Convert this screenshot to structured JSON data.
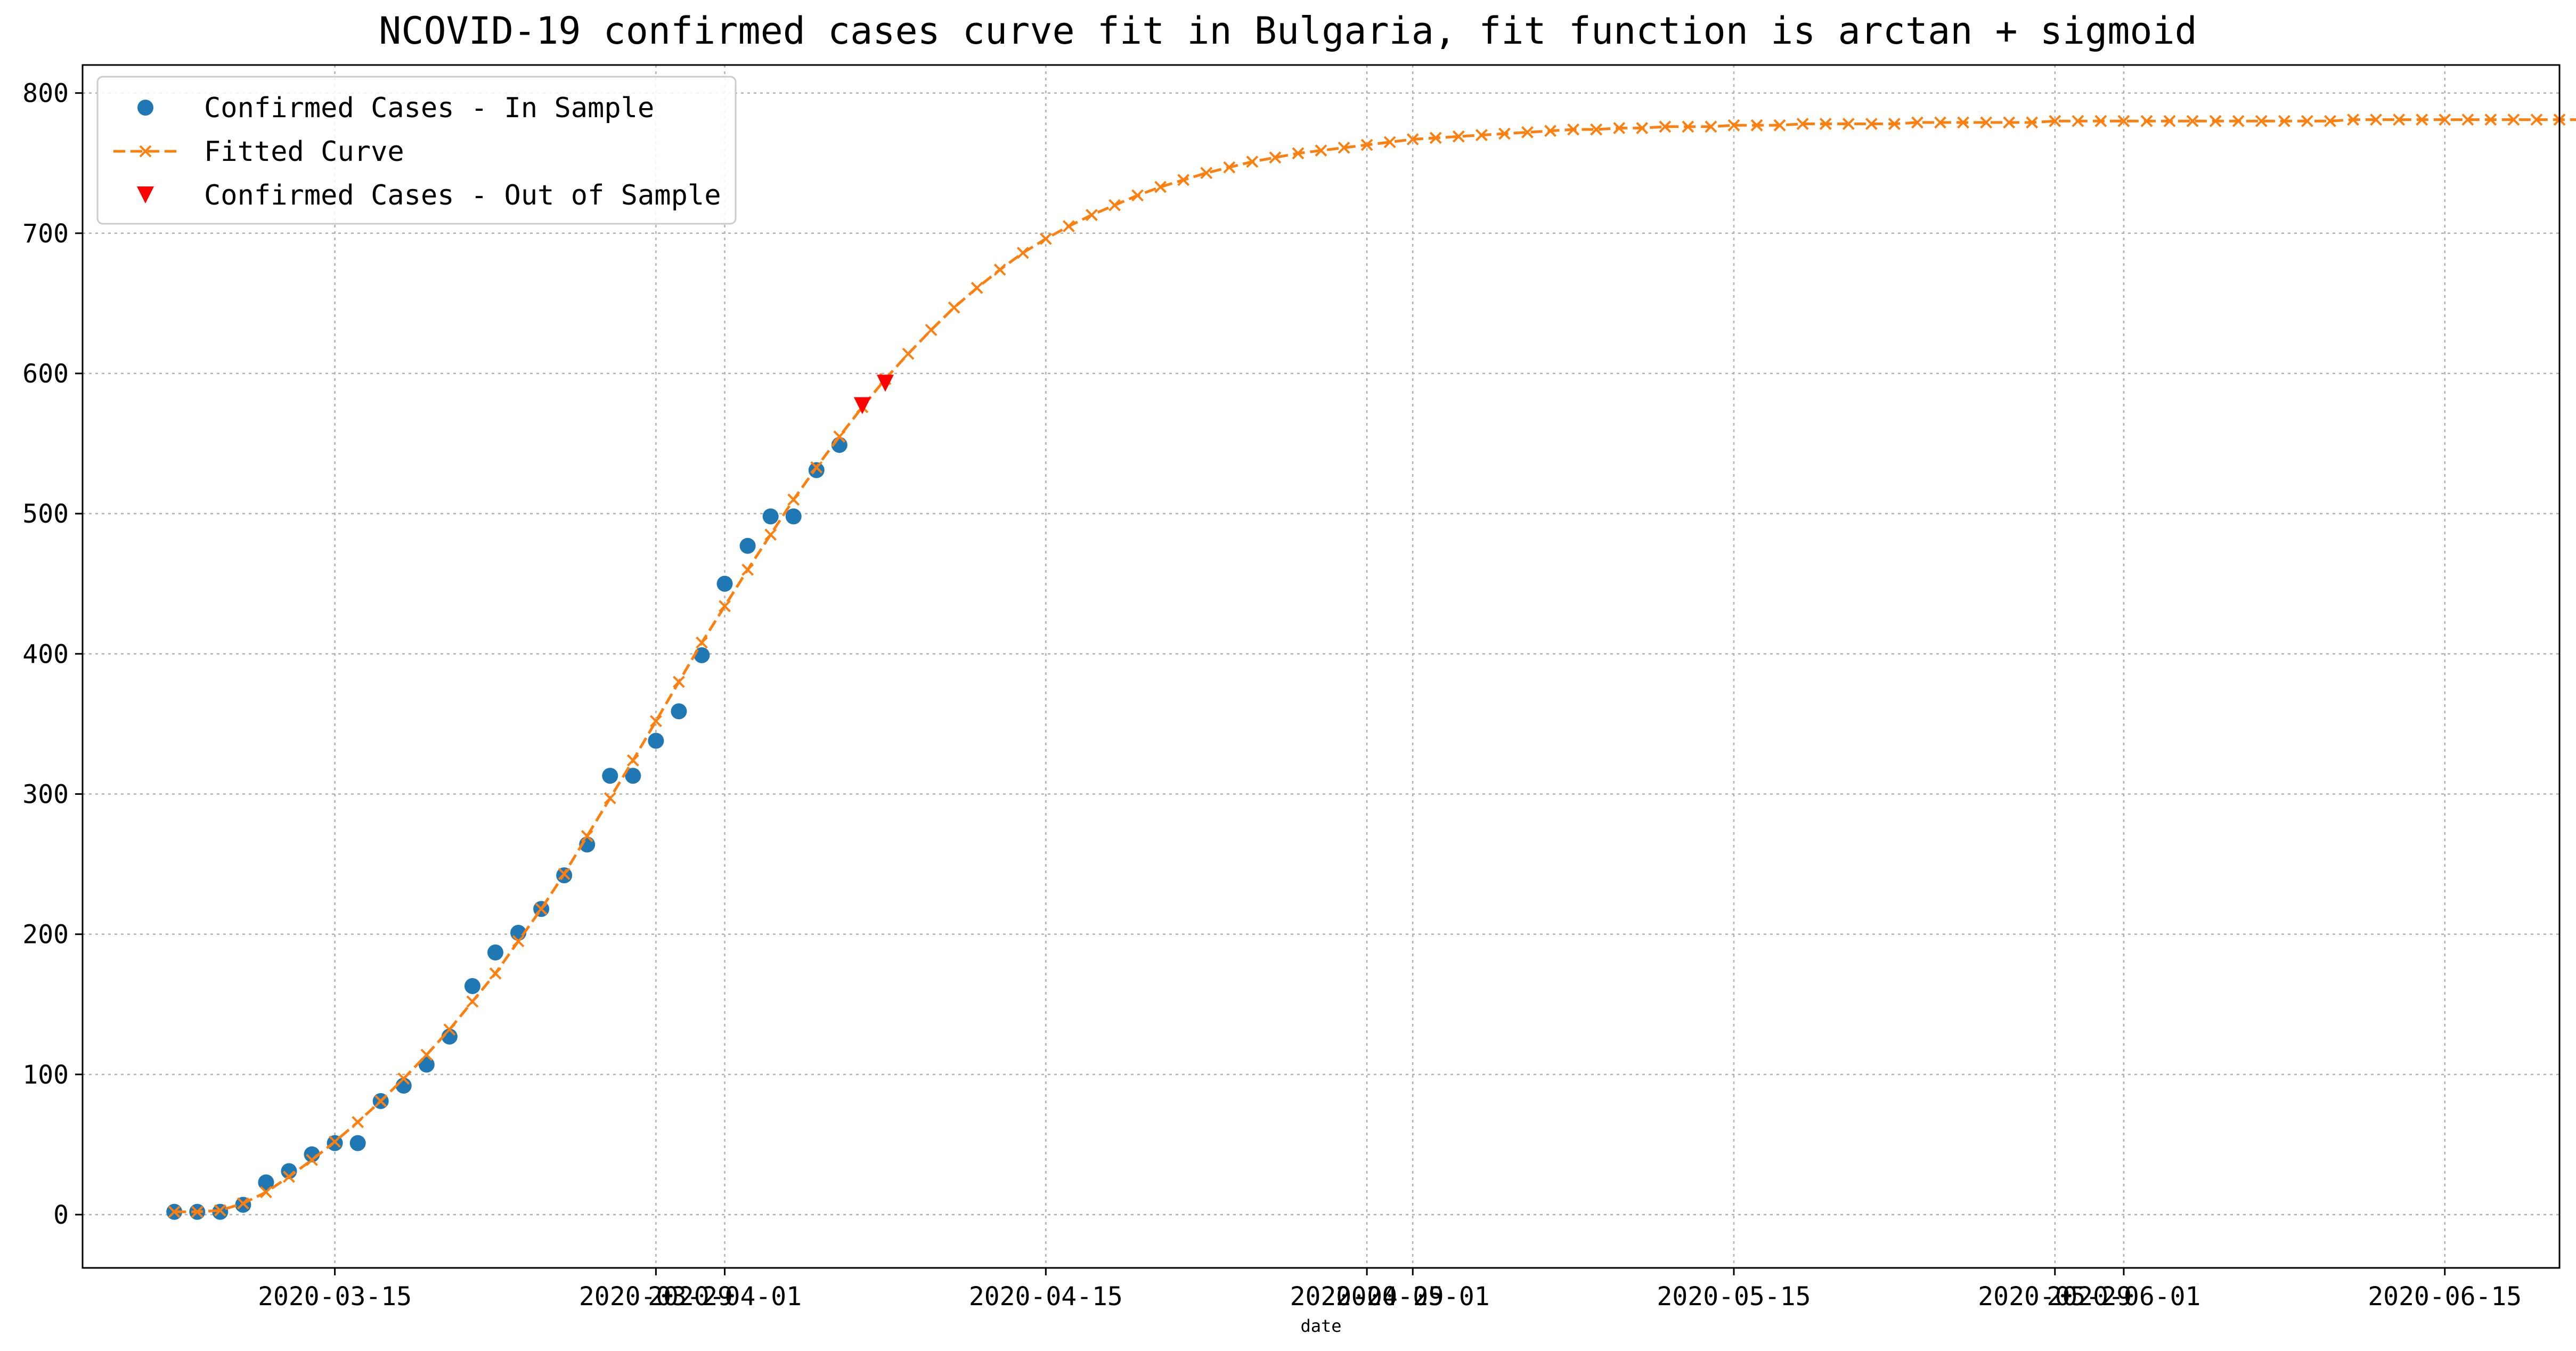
{
  "chart_data": {
    "type": "line",
    "title": "NCOVID-19 confirmed cases curve fit in Bulgaria, fit function is arctan + sigmoid",
    "xlabel": "date",
    "ylabel": "",
    "ylim": [
      -38,
      820
    ],
    "xlim": [
      "2020-03-04",
      "2020-06-20"
    ],
    "yticks": [
      0,
      100,
      200,
      300,
      400,
      500,
      600,
      700,
      800
    ],
    "xticks": [
      {
        "date": "2020-03-15",
        "label": "2020-03-15"
      },
      {
        "date": "2020-03-29",
        "label": "2020-03-29"
      },
      {
        "date": "2020-04-01",
        "label": "2020-04-01"
      },
      {
        "date": "2020-04-15",
        "label": "2020-04-15"
      },
      {
        "date": "2020-04-29",
        "label": "2020-04-29"
      },
      {
        "date": "2020-05-01",
        "label": "2020-05-01"
      },
      {
        "date": "2020-05-15",
        "label": "2020-05-15"
      },
      {
        "date": "2020-05-29",
        "label": "2020-05-29"
      },
      {
        "date": "2020-06-01",
        "label": "2020-06-01"
      },
      {
        "date": "2020-06-15",
        "label": "2020-06-15"
      }
    ],
    "grid": true,
    "legend_position": "top-left",
    "series": [
      {
        "name": "Confirmed Cases - In Sample",
        "kind": "scatter",
        "marker": "circle",
        "color": "#1f77b4",
        "start_date": "2020-03-08",
        "values": [
          2,
          2,
          2,
          7,
          23,
          31,
          43,
          51,
          51,
          81,
          92,
          107,
          127,
          163,
          187,
          201,
          218,
          242,
          264,
          313,
          313,
          338,
          359,
          399,
          450,
          477,
          498,
          498,
          531,
          549
        ]
      },
      {
        "name": "Fitted Curve",
        "kind": "line",
        "marker": "x",
        "color": "#ff7f0e",
        "start_date": "2020-03-08",
        "values": [
          2,
          2,
          3,
          8,
          16,
          27,
          39,
          52,
          66,
          81,
          97,
          114,
          132,
          152,
          172,
          195,
          218,
          243,
          270,
          297,
          324,
          352,
          380,
          408,
          434,
          460,
          485,
          510,
          533,
          555,
          576,
          596,
          614,
          631,
          647,
          661,
          674,
          686,
          696,
          705,
          713,
          720,
          727,
          733,
          738,
          743,
          747,
          751,
          754,
          757,
          759,
          761,
          763,
          765,
          767,
          768,
          769,
          770,
          771,
          772,
          773,
          774,
          774,
          775,
          775,
          776,
          776,
          776,
          777,
          777,
          777,
          778,
          778,
          778,
          778,
          778,
          779,
          779,
          779,
          779,
          779,
          779,
          780,
          780,
          780,
          780,
          780,
          780,
          780,
          780,
          780,
          780,
          780,
          780,
          780,
          781,
          781,
          781,
          781,
          781,
          781,
          781,
          781,
          781,
          781,
          781
        ]
      },
      {
        "name": "Confirmed Cases - Out of Sample",
        "kind": "scatter",
        "marker": "triangle-down",
        "color": "#ff0000",
        "points": [
          {
            "date": "2020-04-07",
            "value": 577
          },
          {
            "date": "2020-04-08",
            "value": 593
          }
        ]
      }
    ]
  }
}
